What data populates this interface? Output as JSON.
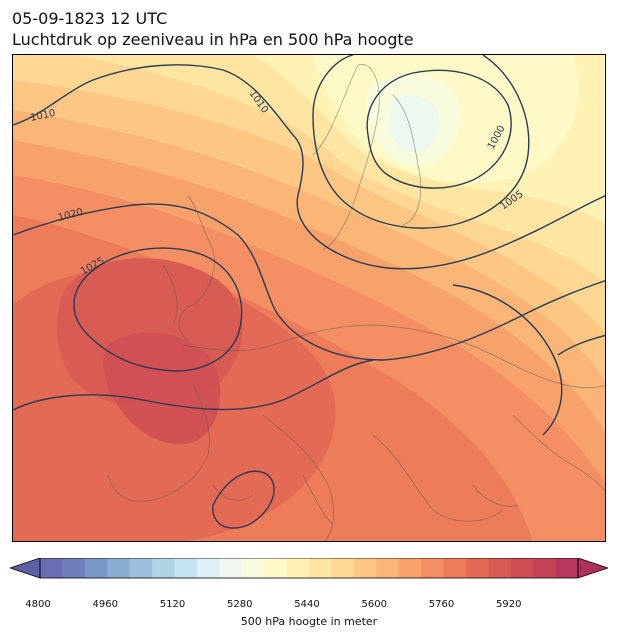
{
  "header": {
    "datetime": "05-09-1823 12 UTC",
    "title": "Luchtdruk op zeeniveau in hPa en 500 hPa hoogte"
  },
  "map": {
    "isobar_labels": [
      "1010",
      "1010",
      "1000",
      "1005",
      "1020",
      "1025"
    ],
    "isobar_color": "#2b3a55"
  },
  "colorbar": {
    "label": "500 hPa hoogte in meter",
    "ticks": [
      "4800",
      "4960",
      "5120",
      "5280",
      "5440",
      "5600",
      "5760",
      "5920"
    ],
    "colors": [
      "#6a6db4",
      "#6e80bc",
      "#7b97c7",
      "#8aaed2",
      "#9cc0dc",
      "#b0d3e6",
      "#c6e4ef",
      "#ddf0f4",
      "#eef8ef",
      "#f8fcdc",
      "#fefac8",
      "#fff2b4",
      "#fee6a2",
      "#fed892",
      "#fdc783",
      "#fbb576",
      "#f8a26b",
      "#f38f62",
      "#ec7c5a",
      "#e36b55",
      "#d95c54",
      "#cf4e55",
      "#c44258",
      "#b8395b"
    ]
  }
}
